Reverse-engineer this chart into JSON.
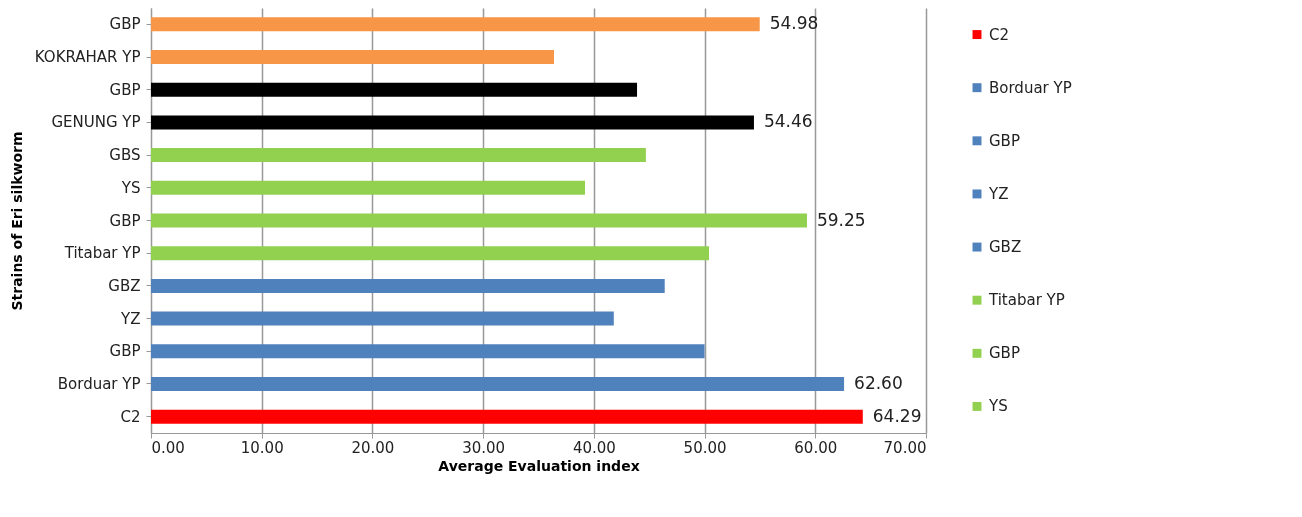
{
  "chart_data": {
    "type": "bar",
    "orientation": "horizontal",
    "xlabel": "Average Evaluation index",
    "ylabel": "Strains of Eri silkworm",
    "categories": [
      "GBP",
      "KOKRAHAR YP",
      "GBP",
      "GENUNG YP",
      "GBS",
      "YS",
      "GBP",
      "Titabar YP",
      "GBZ",
      "YZ",
      "GBP",
      "Borduar YP",
      "C2"
    ],
    "series": [
      {
        "name": "C2",
        "color": "#ff0000",
        "values": [
          null,
          null,
          null,
          null,
          null,
          null,
          null,
          null,
          null,
          null,
          null,
          null,
          64.29
        ],
        "value_labels": [
          null,
          null,
          null,
          null,
          null,
          null,
          null,
          null,
          null,
          null,
          null,
          null,
          "64.29"
        ]
      },
      {
        "name": "Borduar YP",
        "color": "#4f81bd",
        "values": [
          null,
          null,
          null,
          null,
          null,
          null,
          null,
          null,
          null,
          null,
          null,
          62.6,
          null
        ],
        "value_labels": [
          null,
          null,
          null,
          null,
          null,
          null,
          null,
          null,
          null,
          null,
          null,
          "62.60",
          null
        ]
      },
      {
        "name": "GBP",
        "color": "#4f81bd",
        "values": [
          null,
          null,
          null,
          null,
          null,
          null,
          null,
          null,
          null,
          null,
          50.0,
          null,
          null
        ]
      },
      {
        "name": "YZ",
        "color": "#4f81bd",
        "values": [
          null,
          null,
          null,
          null,
          null,
          null,
          null,
          null,
          null,
          41.8,
          null,
          null,
          null
        ]
      },
      {
        "name": "GBZ",
        "color": "#4f81bd",
        "values": [
          null,
          null,
          null,
          null,
          null,
          null,
          null,
          null,
          46.4,
          null,
          null,
          null,
          null
        ]
      },
      {
        "name": "Titabar YP",
        "color": "#92d050",
        "values": [
          null,
          null,
          null,
          null,
          null,
          null,
          null,
          50.4,
          null,
          null,
          null,
          null,
          null
        ]
      },
      {
        "name": "GBP",
        "color": "#92d050",
        "values": [
          null,
          null,
          null,
          null,
          null,
          null,
          59.25,
          null,
          null,
          null,
          null,
          null,
          null
        ],
        "value_labels": [
          null,
          null,
          null,
          null,
          null,
          null,
          "59.25",
          null,
          null,
          null,
          null,
          null,
          null
        ]
      },
      {
        "name": "YS",
        "color": "#92d050",
        "values": [
          null,
          null,
          null,
          null,
          null,
          39.2,
          null,
          null,
          null,
          null,
          null,
          null,
          null
        ]
      },
      {
        "color": "#92d050",
        "values": [
          null,
          null,
          null,
          null,
          44.7,
          null,
          null,
          null,
          null,
          null,
          null,
          null,
          null
        ]
      },
      {
        "color": "#000000",
        "values": [
          null,
          null,
          null,
          54.46,
          null,
          null,
          null,
          null,
          null,
          null,
          null,
          null,
          null
        ],
        "value_labels": [
          null,
          null,
          null,
          "54.46",
          null,
          null,
          null,
          null,
          null,
          null,
          null,
          null,
          null
        ]
      },
      {
        "color": "#000000",
        "values": [
          null,
          null,
          43.9,
          null,
          null,
          null,
          null,
          null,
          null,
          null,
          null,
          null,
          null
        ]
      },
      {
        "color": "#f79646",
        "values": [
          null,
          36.4,
          null,
          null,
          null,
          null,
          null,
          null,
          null,
          null,
          null,
          null,
          null
        ]
      },
      {
        "color": "#f79646",
        "values": [
          54.98,
          null,
          null,
          null,
          null,
          null,
          null,
          null,
          null,
          null,
          null,
          null,
          null
        ],
        "value_labels": [
          "54.98",
          null,
          null,
          null,
          null,
          null,
          null,
          null,
          null,
          null,
          null,
          null,
          null
        ]
      }
    ],
    "xlim": [
      0,
      70
    ],
    "xticks": [
      {
        "value": 0,
        "label": "0.00"
      },
      {
        "value": 10,
        "label": "10.00"
      },
      {
        "value": 20,
        "label": "20.00"
      },
      {
        "value": 30,
        "label": "30.00"
      },
      {
        "value": 40,
        "label": "40.00"
      },
      {
        "value": 50,
        "label": "50.00"
      },
      {
        "value": 60,
        "label": "60.00"
      },
      {
        "value": 70,
        "label": "70.00"
      }
    ],
    "grid": "x",
    "legend": "right"
  }
}
